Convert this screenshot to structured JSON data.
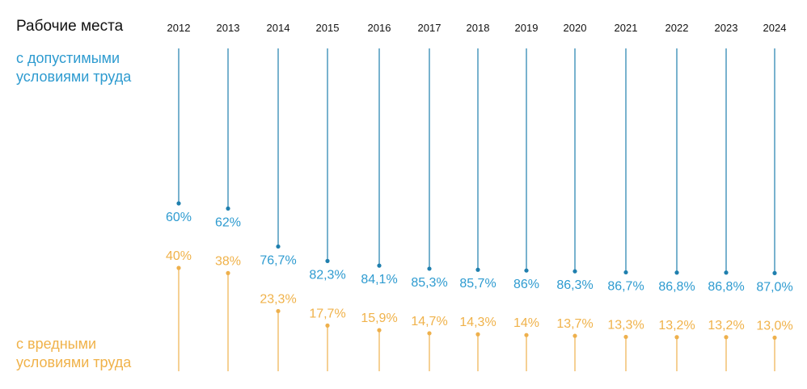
{
  "colors": {
    "good": "#2e9bd0",
    "bad": "#f0b24a",
    "good_line": "#1f7fae",
    "bad_line": "#eeb04c",
    "text": "#111111"
  },
  "chart_data": {
    "type": "bar",
    "title": "Рабочие места",
    "categories": [
      "2012",
      "2013",
      "2014",
      "2015",
      "2016",
      "2017",
      "2018",
      "2019",
      "2020",
      "2021",
      "2022",
      "2023",
      "2024"
    ],
    "series": [
      {
        "name": "с допустимыми условиями труда",
        "name_lines": [
          "с допустимыми",
          "условиями труда"
        ],
        "values": [
          60,
          62,
          76.7,
          82.3,
          84.1,
          85.3,
          85.7,
          86,
          86.3,
          86.7,
          86.8,
          86.8,
          87.0
        ],
        "labels": [
          "60%",
          "62%",
          "76,7%",
          "82,3%",
          "84,1%",
          "85,3%",
          "85,7%",
          "86%",
          "86,3%",
          "86,7%",
          "86,8%",
          "86,8%",
          "87,0%"
        ]
      },
      {
        "name": "с вредными условиями труда",
        "name_lines": [
          "с вредными",
          "условиями труда"
        ],
        "values": [
          40,
          38,
          23.3,
          17.7,
          15.9,
          14.7,
          14.3,
          14,
          13.7,
          13.3,
          13.2,
          13.2,
          13.0
        ],
        "labels": [
          "40%",
          "38%",
          "23,3%",
          "17,7%",
          "15,9%",
          "14,7%",
          "14,3%",
          "14%",
          "13,7%",
          "13,3%",
          "13,2%",
          "13,2%",
          "13,0%"
        ]
      }
    ],
    "ylim": [
      0,
      100
    ],
    "xlabel": "",
    "ylabel": ""
  }
}
